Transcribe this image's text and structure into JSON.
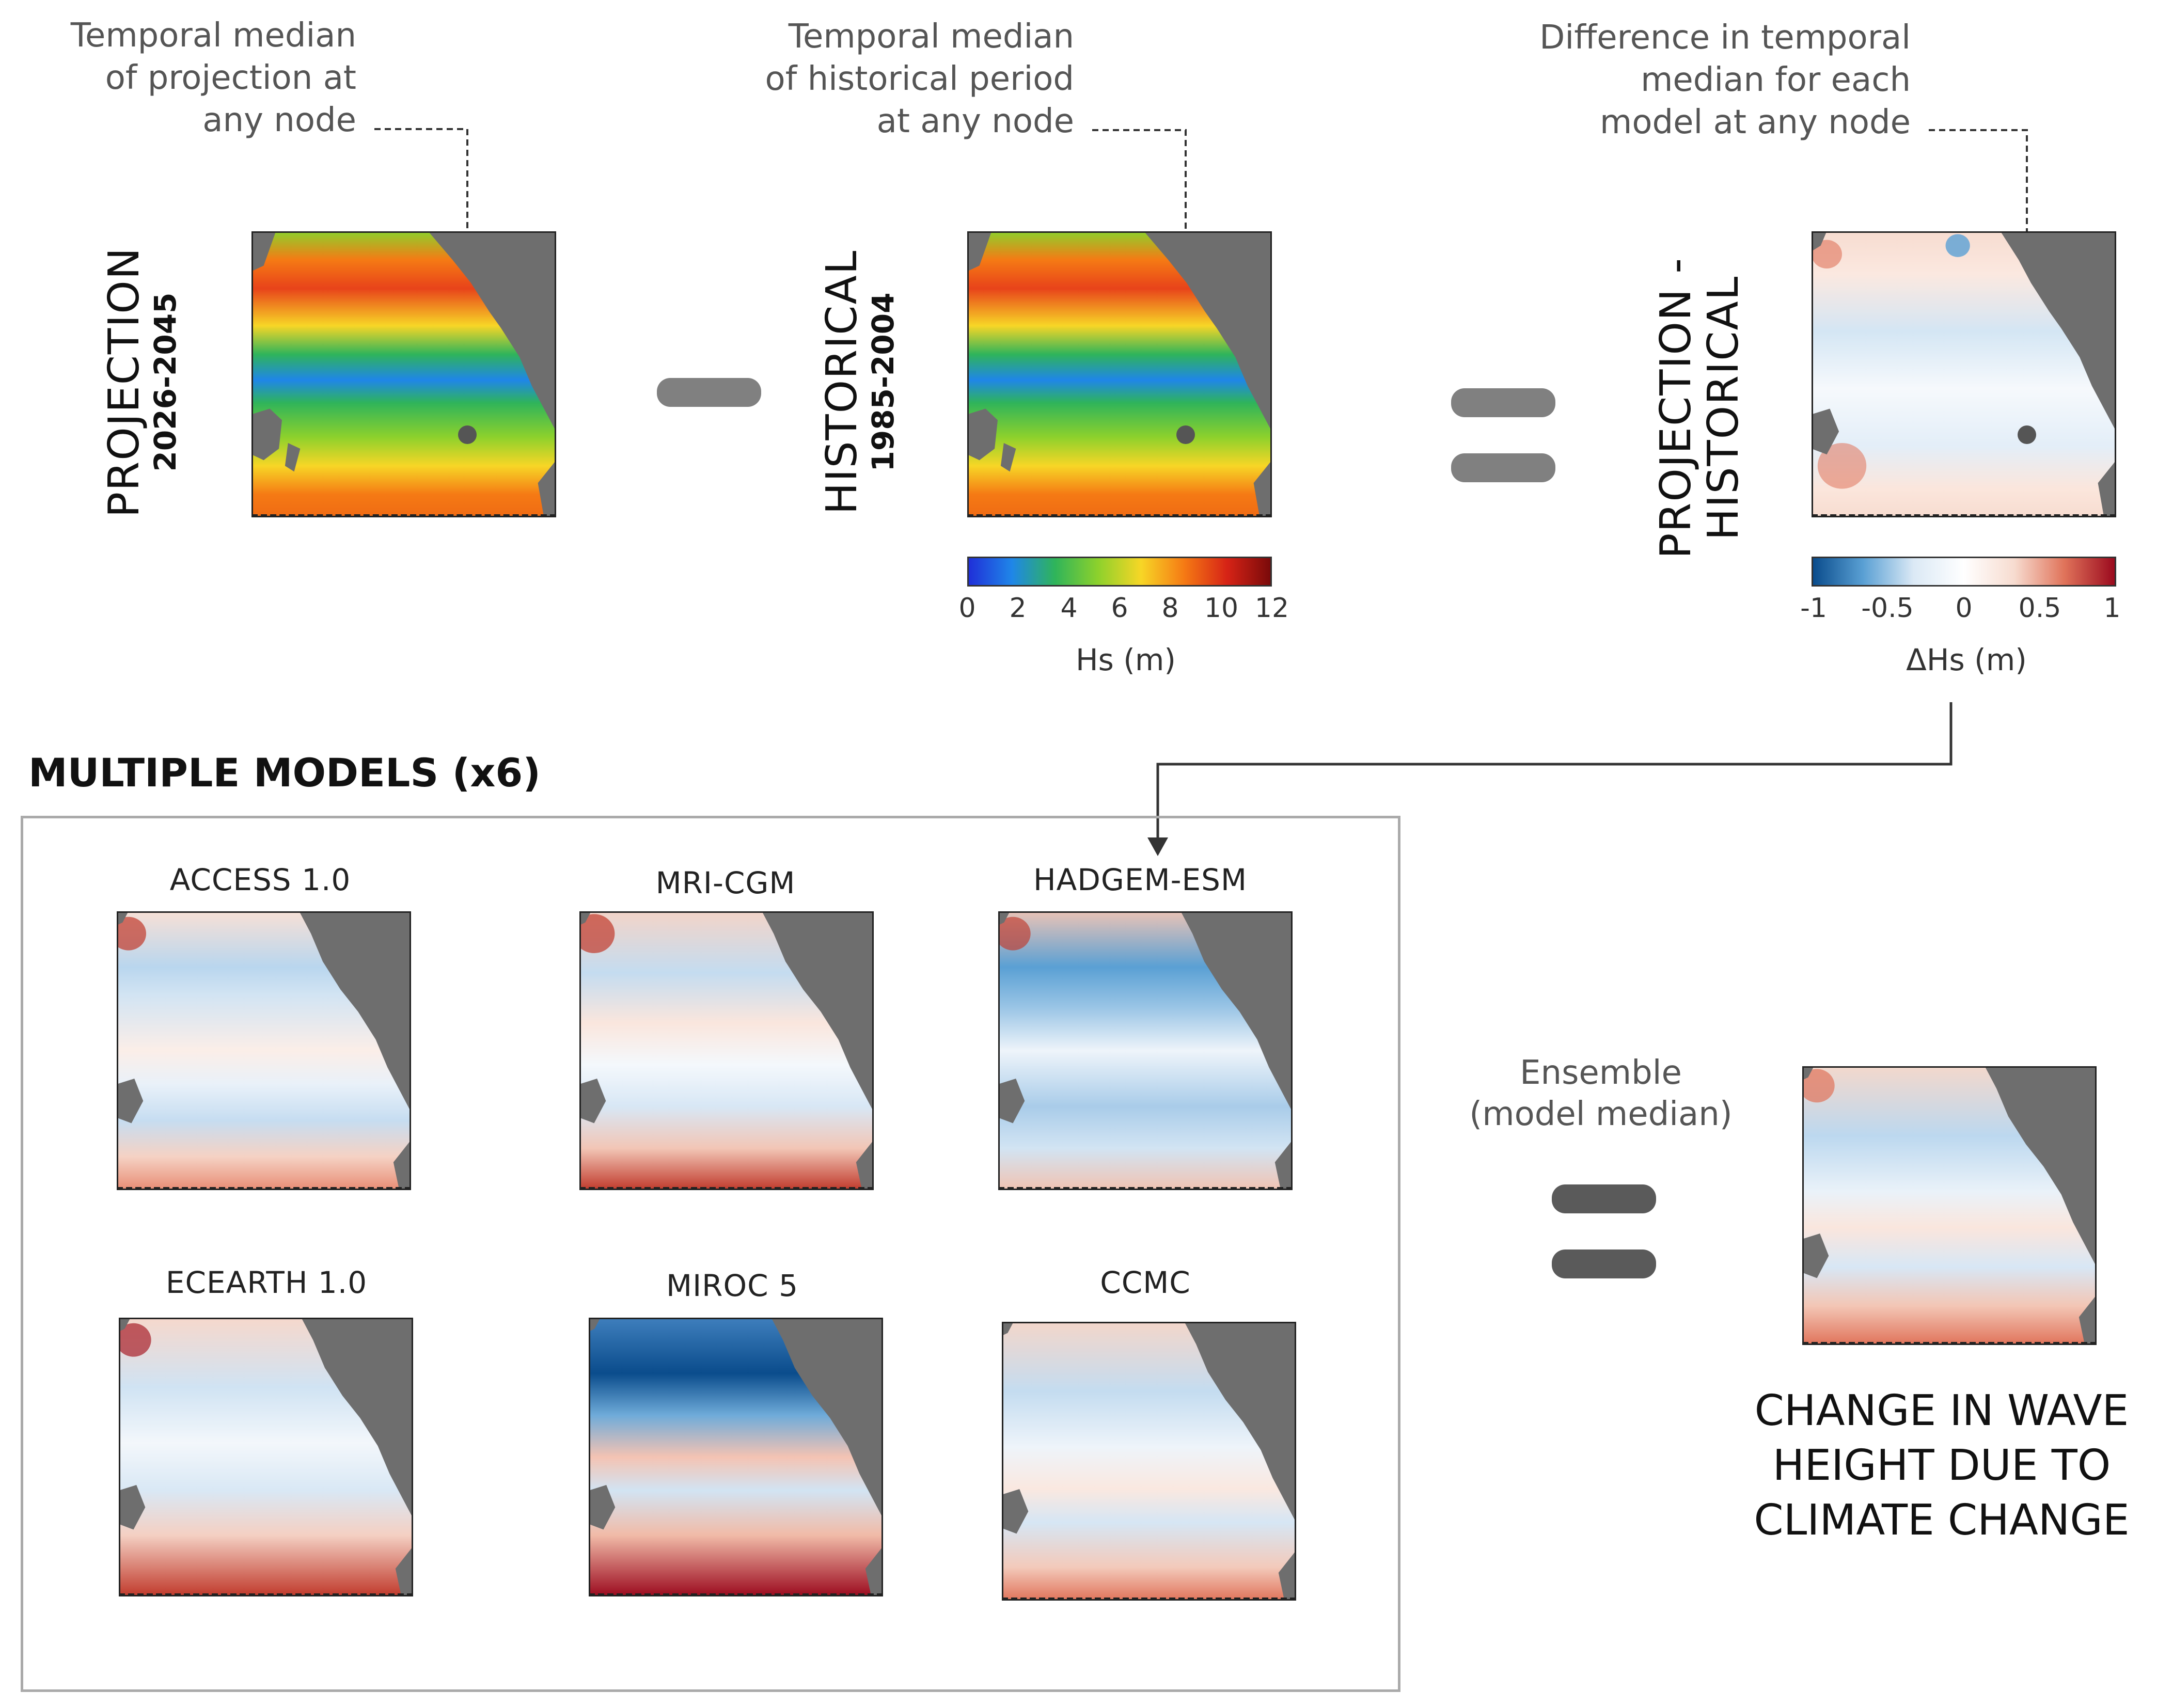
{
  "annotations": {
    "projection": [
      "Temporal median",
      "of projection at",
      "any node"
    ],
    "historical": [
      "Temporal median",
      "of historical period",
      "at any node"
    ],
    "difference": [
      "Difference in temporal",
      "median for each",
      "model at any node"
    ]
  },
  "panels": {
    "projection": {
      "label": "PROJECTION",
      "period": "2026-2045"
    },
    "historical": {
      "label": "HISTORICAL",
      "period": "1985-2004"
    },
    "difference": {
      "label_line1": "PROJECTION -",
      "label_line2": "HISTORICAL"
    }
  },
  "colorbar_hs": {
    "ticks": [
      "0",
      "2",
      "4",
      "6",
      "8",
      "10",
      "12"
    ],
    "unit": "Hs (m)"
  },
  "colorbar_dhs": {
    "ticks": [
      "-1",
      "-0.5",
      "0",
      "0.5",
      "1"
    ],
    "unit": "ΔHs (m)"
  },
  "section": {
    "title": "MULTIPLE MODELS (x6)"
  },
  "models": [
    "ACCESS 1.0",
    "MRI-CGM",
    "HADGEM-ESM",
    "ECEARTH 1.0",
    "MIROC 5",
    "CCMC"
  ],
  "ensemble": {
    "line1": "Ensemble",
    "line2": "(model median)"
  },
  "result": {
    "line1": "CHANGE IN WAVE",
    "line2": "HEIGHT DUE TO",
    "line3": "CLIMATE CHANGE"
  },
  "colors": {
    "operator": "#808080",
    "operator_dark": "#5a5a5a",
    "land": "#6e6e6e",
    "hs_scale": [
      "#1f2fd8",
      "#1f86e8",
      "#2fb45a",
      "#8dd12c",
      "#f7d626",
      "#f57a14",
      "#d62316",
      "#7a0a0a"
    ],
    "dhs_scale": [
      "#0a4c8c",
      "#5aa0d4",
      "#dbe9f5",
      "#ffffff",
      "#f7dcd0",
      "#e0735a",
      "#9b0a1e"
    ]
  }
}
